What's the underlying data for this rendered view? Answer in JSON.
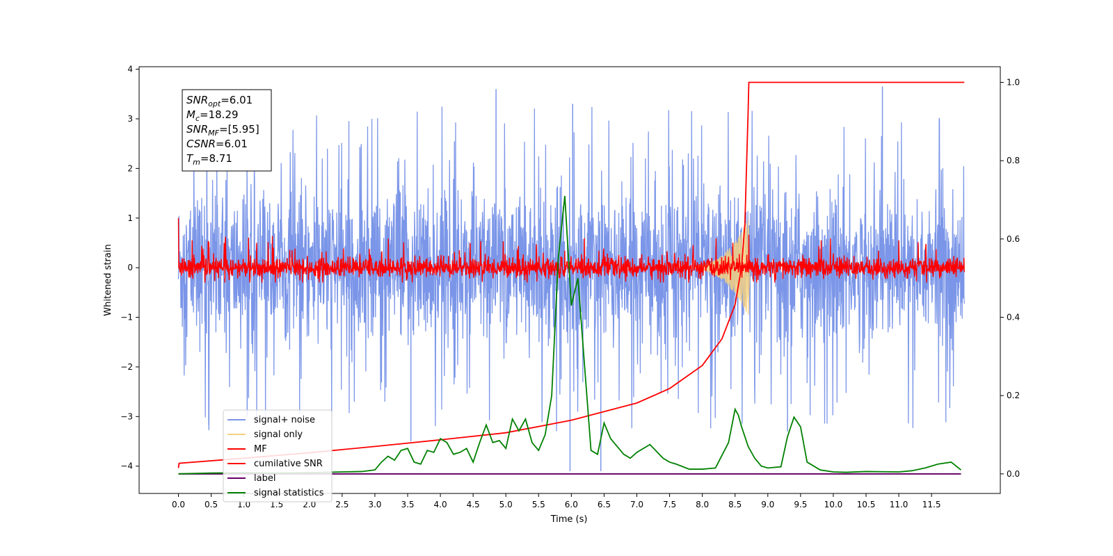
{
  "chart_data": {
    "type": "line",
    "xlabel": "Time (s)",
    "ylabel": "Whitened strain",
    "xlim": [
      -0.6,
      12.55
    ],
    "ylim": [
      -4.55,
      4.05
    ],
    "y2lim": [
      -0.05,
      1.04
    ],
    "x_ticks": [
      "0.0",
      "0.5",
      "1.0",
      "1.5",
      "2.0",
      "2.5",
      "3.0",
      "3.5",
      "4.0",
      "4.5",
      "5.0",
      "5.5",
      "6.0",
      "6.5",
      "7.0",
      "7.5",
      "8.0",
      "8.5",
      "9.0",
      "9.5",
      "10.0",
      "10.5",
      "11.0",
      "11.5"
    ],
    "y_ticks": [
      "4",
      "3",
      "2",
      "1",
      "0",
      "−1",
      "−2",
      "−3",
      "−4"
    ],
    "y2_ticks": [
      "1.0",
      "0.8",
      "0.6",
      "0.4",
      "0.2",
      "0.0"
    ],
    "annotation": {
      "lines": [
        {
          "base": "SNR",
          "sub": "opt",
          "rest": "=6.01"
        },
        {
          "base": "M",
          "sub": "c",
          "rest": "=18.29"
        },
        {
          "base": "SNR",
          "sub": "MF",
          "rest": "=[5.95]"
        },
        {
          "base": "CSNR",
          "sub": "",
          "rest": "=6.01"
        },
        {
          "base": "T",
          "sub": "m",
          "rest": "=8.71"
        }
      ]
    },
    "legend": {
      "placement": "lower-left",
      "entries": [
        {
          "label": "signal+ noise",
          "color": "#7b96e8"
        },
        {
          "label": "signal only",
          "color": "#f5d080"
        },
        {
          "label": "MF",
          "color": "#ff0000"
        },
        {
          "label": "cumilative SNR",
          "color": "#ff0000"
        },
        {
          "label": "label",
          "color": "#660066"
        },
        {
          "label": "signal statistics",
          "color": "#008000"
        }
      ]
    },
    "series": [
      {
        "name": "signal+ noise",
        "axis": "left",
        "color": "#7b96e8",
        "description": "whitened noise band spanning roughly -2.2 to 2.0 from t=0 to t=12, occasional spikes to ±3.6",
        "envelope": [
          -2.2,
          2.0
        ],
        "spikes": [
          {
            "x": 5.98,
            "y": -4.1
          },
          {
            "x": 6.45,
            "y": -4.1
          },
          {
            "x": 3.55,
            "y": -3.5
          },
          {
            "x": 4.85,
            "y": 3.6
          },
          {
            "x": 10.75,
            "y": 3.65
          },
          {
            "x": 6.02,
            "y": 3.3
          },
          {
            "x": 1.05,
            "y": -3.0
          },
          {
            "x": 9.3,
            "y": -3.3
          }
        ]
      },
      {
        "name": "signal only",
        "axis": "left",
        "color": "#f5d080",
        "description": "chirp growing to peak amplitude ~1.0 at t≈8.71",
        "peak_time": 8.71,
        "peak_amplitude": 1.0
      },
      {
        "name": "MF",
        "axis": "left",
        "color": "#ff0000",
        "description": "matched filter output fluctuating mostly within -0.25 to 0.3, starting near 1.0 at t=0",
        "envelope": [
          -0.25,
          0.3
        ],
        "start_value": 1.0
      },
      {
        "name": "cumilative SNR",
        "axis": "right",
        "color": "#ff0000",
        "x": [
          0.0,
          0.01,
          1.0,
          2.0,
          3.0,
          4.0,
          5.0,
          6.0,
          7.0,
          7.5,
          8.0,
          8.3,
          8.5,
          8.6,
          8.65,
          8.7,
          8.71,
          12.0
        ],
        "y": [
          0.015,
          0.027,
          0.04,
          0.054,
          0.07,
          0.087,
          0.105,
          0.137,
          0.181,
          0.218,
          0.277,
          0.345,
          0.432,
          0.53,
          0.64,
          0.93,
          1.0,
          1.0
        ]
      },
      {
        "name": "label",
        "axis": "right",
        "color": "#660066",
        "x": [
          0.0,
          11.95
        ],
        "y": [
          0.0,
          0.0
        ]
      },
      {
        "name": "signal statistics",
        "axis": "right",
        "color": "#008000",
        "x": [
          0.0,
          0.5,
          1.0,
          1.5,
          2.0,
          2.5,
          2.8,
          3.0,
          3.1,
          3.2,
          3.3,
          3.4,
          3.5,
          3.6,
          3.7,
          3.8,
          3.9,
          4.0,
          4.1,
          4.2,
          4.3,
          4.4,
          4.5,
          4.6,
          4.7,
          4.8,
          4.9,
          5.0,
          5.1,
          5.2,
          5.3,
          5.4,
          5.5,
          5.6,
          5.7,
          5.8,
          5.9,
          6.0,
          6.1,
          6.2,
          6.3,
          6.4,
          6.5,
          6.6,
          6.7,
          6.8,
          6.9,
          7.0,
          7.2,
          7.4,
          7.5,
          7.6,
          7.8,
          8.0,
          8.2,
          8.4,
          8.5,
          8.55,
          8.6,
          8.7,
          8.8,
          8.9,
          9.0,
          9.2,
          9.3,
          9.4,
          9.5,
          9.6,
          9.7,
          9.8,
          10.0,
          10.2,
          10.5,
          11.0,
          11.2,
          11.4,
          11.6,
          11.8,
          11.95
        ],
        "y": [
          0.0,
          0.002,
          0.003,
          0.002,
          0.003,
          0.005,
          0.006,
          0.01,
          0.03,
          0.045,
          0.035,
          0.06,
          0.065,
          0.03,
          0.025,
          0.06,
          0.055,
          0.09,
          0.08,
          0.05,
          0.055,
          0.065,
          0.03,
          0.08,
          0.125,
          0.08,
          0.085,
          0.065,
          0.14,
          0.11,
          0.14,
          0.08,
          0.06,
          0.1,
          0.2,
          0.55,
          0.71,
          0.43,
          0.5,
          0.28,
          0.06,
          0.05,
          0.13,
          0.09,
          0.07,
          0.05,
          0.04,
          0.055,
          0.075,
          0.04,
          0.03,
          0.025,
          0.012,
          0.012,
          0.015,
          0.08,
          0.165,
          0.15,
          0.12,
          0.07,
          0.04,
          0.02,
          0.015,
          0.018,
          0.095,
          0.145,
          0.12,
          0.03,
          0.02,
          0.01,
          0.005,
          0.004,
          0.006,
          0.005,
          0.008,
          0.015,
          0.025,
          0.03,
          0.01
        ]
      }
    ]
  }
}
